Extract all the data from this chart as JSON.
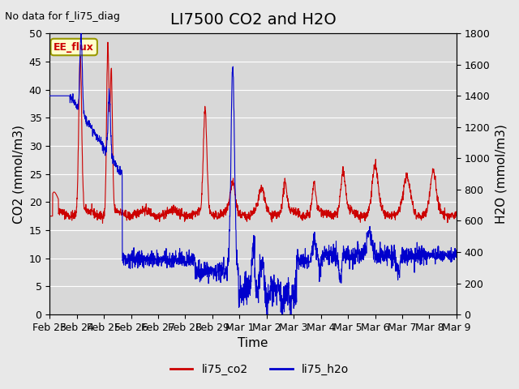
{
  "title": "LI7500 CO2 and H2O",
  "watermark": "No data for f_li75_diag",
  "xlabel": "Time",
  "ylabel_left": "CO2 (mmol/m3)",
  "ylabel_right": "H2O (mmol/m3)",
  "ylim_left": [
    0,
    50
  ],
  "ylim_right": [
    0,
    1800
  ],
  "xtick_labels": [
    "Feb 23",
    "Feb 24",
    "Feb 25",
    "Feb 26",
    "Feb 27",
    "Feb 28",
    "Feb 29",
    "Mar 1",
    "Mar 2",
    "Mar 3",
    "Mar 4",
    "Mar 5",
    "Mar 6",
    "Mar 7",
    "Mar 8",
    "Mar 9"
  ],
  "legend_entries": [
    "li75_co2",
    "li75_h2o"
  ],
  "legend_colors": [
    "#cc0000",
    "#0000cc"
  ],
  "co2_color": "#cc0000",
  "h2o_color": "#0000cc",
  "bg_color": "#e8e8e8",
  "plot_bg_color": "#d8d8d8",
  "grid_color": "#ffffff",
  "ee_flux_label": "EE_flux",
  "ee_flux_bg": "#ffffcc",
  "ee_flux_border": "#999900",
  "title_fontsize": 14,
  "axis_label_fontsize": 11,
  "tick_fontsize": 9
}
